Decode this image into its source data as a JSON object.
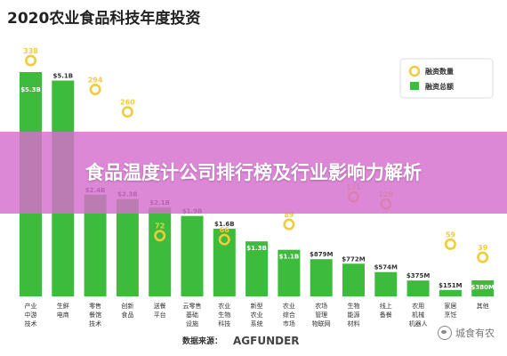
{
  "chart_data": {
    "type": "bar",
    "title": "2020农业食品科技年度投资",
    "unit_bar": "$",
    "categories": [
      [
        "产业",
        "中游",
        "技术"
      ],
      [
        "生鲜",
        "电商"
      ],
      [
        "零售",
        "餐馆",
        "技术"
      ],
      [
        "创新",
        "食品"
      ],
      [
        "送餐",
        "平台"
      ],
      [
        "云零售",
        "基础",
        "设施"
      ],
      [
        "农业",
        "生物",
        "科技"
      ],
      [
        "新型",
        "农业",
        "系统"
      ],
      [
        "农业",
        "综合",
        "市场"
      ],
      [
        "农场",
        "管理",
        "物联网"
      ],
      [
        "生物",
        "能源",
        "材料"
      ],
      [
        "线上",
        "备餐"
      ],
      [
        "农用",
        "机械",
        "机器人"
      ],
      [
        "家居",
        "烹饪"
      ],
      [
        "其他"
      ]
    ],
    "series": [
      {
        "name": "融资总额",
        "labels": [
          "$5.3B",
          "$5.1B",
          "$2.4B",
          "$2.3B",
          "$2.1B",
          "$1.9B",
          "$1.6B",
          "$1.3B",
          "$1.1B",
          "$879M",
          "$772M",
          "$574M",
          "$375M",
          "$151M",
          "$380M"
        ],
        "values_musd": [
          5300,
          5100,
          2400,
          2300,
          2100,
          1900,
          1600,
          1300,
          1100,
          879,
          772,
          574,
          375,
          151,
          380
        ],
        "color": "#3dbb3d"
      },
      {
        "name": "融资数量",
        "values": [
          338,
          null,
          294,
          260,
          72,
          null,
          66,
          null,
          89,
          null,
          131,
          120,
          null,
          59,
          39
        ],
        "color": "#f0cc3c"
      }
    ],
    "legend": [
      "融资数量",
      "融资总额"
    ],
    "legend_position": "top-right",
    "source_label": "数据来源：",
    "source_logo": "AGFUNDER"
  },
  "overlay_title": "食品温度计公司排行榜及行业影响力解析",
  "watermark": "城食有农",
  "colors": {
    "bar": "#3dbb3d",
    "dot": "#f0cc3c",
    "banner": "#d66ecd"
  }
}
